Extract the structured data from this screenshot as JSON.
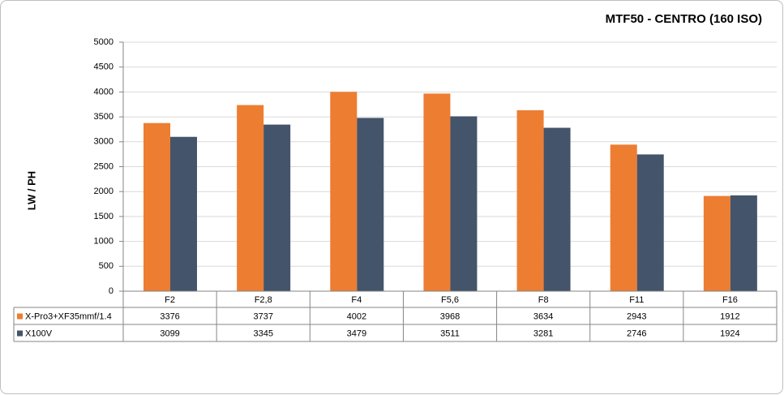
{
  "chart_data": {
    "type": "bar",
    "title": "MTF50 - CENTRO (160 ISO)",
    "y_label": "LW / PH",
    "categories": [
      "F2",
      "F2,8",
      "F4",
      "F5,6",
      "F8",
      "F11",
      "F16"
    ],
    "series": [
      {
        "name": "X-Pro3+XF35mmf/1.4",
        "color": "#ED7D31",
        "values": [
          3376,
          3737,
          4002,
          3968,
          3634,
          2943,
          1912
        ]
      },
      {
        "name": "X100V",
        "color": "#44546A",
        "values": [
          3099,
          3345,
          3479,
          3511,
          3281,
          2746,
          1924
        ]
      }
    ],
    "ylim": [
      0,
      5000
    ],
    "yticks": [
      0,
      500,
      1000,
      1500,
      2000,
      2500,
      3000,
      3500,
      4000,
      4500,
      5000
    ],
    "grid": true
  }
}
